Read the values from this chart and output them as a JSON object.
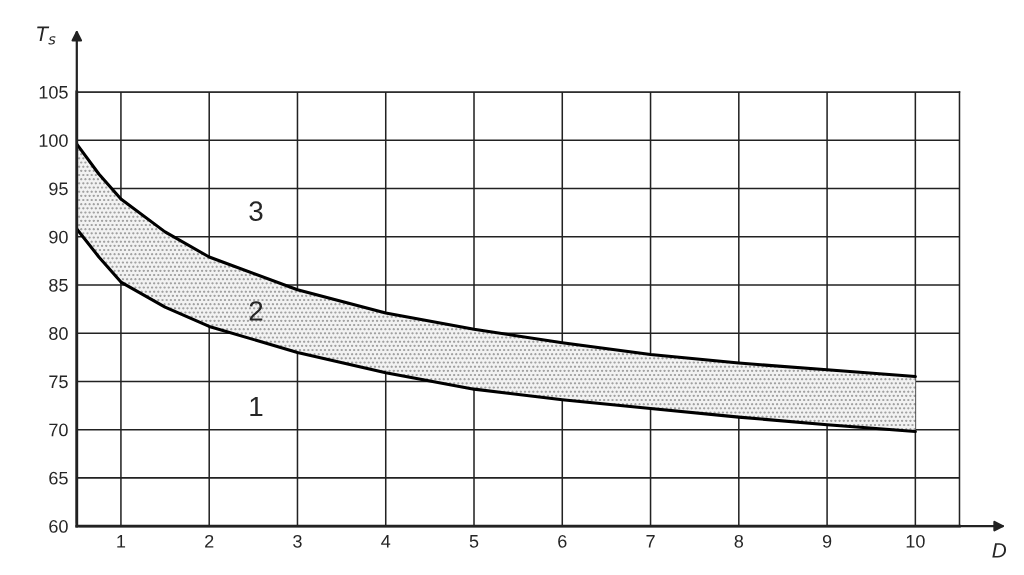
{
  "chart_data": {
    "type": "line",
    "x": [
      0.5,
      0.75,
      1,
      1.5,
      2,
      3,
      4,
      5,
      6,
      7,
      8,
      9,
      10
    ],
    "series": [
      {
        "color": "#000000",
        "values": [
          90.8,
          87.9,
          85.3,
          82.7,
          80.7,
          78.0,
          75.9,
          74.2,
          73.1,
          72.2,
          71.3,
          70.5,
          69.8
        ]
      },
      {
        "color": "#000000",
        "values": [
          99.6,
          96.5,
          93.9,
          90.5,
          87.9,
          84.5,
          82.1,
          80.4,
          79.0,
          77.8,
          76.9,
          76.2,
          75.5
        ],
        "lower": [
          90.8,
          87.9,
          85.3,
          82.7,
          80.7,
          78.0,
          75.9,
          74.2,
          73.1,
          72.2,
          71.3,
          70.5,
          69.8
        ],
        "upper": [
          99.6,
          96.5,
          93.9,
          90.5,
          87.9,
          84.5,
          82.1,
          80.4,
          79.0,
          77.8,
          76.9,
          76.2,
          75.5
        ]
      }
    ],
    "xlabel": "D",
    "ylabel": "T$_{s}$",
    "xlim": [
      0.5,
      10.5
    ],
    "ylim": [
      60,
      105
    ],
    "xticks": [
      1,
      2,
      3,
      4,
      5,
      6,
      7,
      8,
      9,
      10
    ],
    "yticks": [
      60,
      65,
      70,
      75,
      80,
      85,
      90,
      95,
      100,
      105
    ],
    "grid": true,
    "marker": "none",
    "line_style": "solid",
    "annotations": [
      "3",
      "2",
      "1"
    ]
  }
}
